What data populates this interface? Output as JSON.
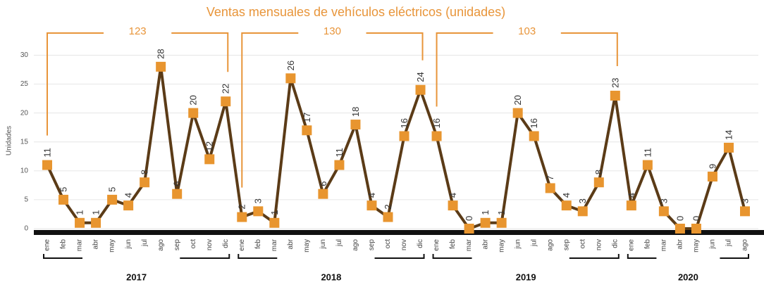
{
  "chart_data": {
    "type": "line",
    "title": "Ventas mensuales de vehículos eléctricos (unidades)",
    "y_label": "Unidades",
    "categories": [
      "ene",
      "feb",
      "mar",
      "abr",
      "may",
      "jun",
      "jul",
      "ago",
      "sep",
      "oct",
      "nov",
      "dic",
      "ene",
      "feb",
      "mar",
      "abr",
      "may",
      "jun",
      "jul",
      "ago",
      "sep",
      "oct",
      "nov",
      "dic",
      "ene",
      "feb",
      "mar",
      "abr",
      "may",
      "jun",
      "jul",
      "ago",
      "sep",
      "oct",
      "nov",
      "dic",
      "ene",
      "feb",
      "mar",
      "abr",
      "may",
      "jun",
      "jul",
      "ago"
    ],
    "series": [
      {
        "name": "Ventas",
        "color": "#5b3b17",
        "marker_color": "#e8952f",
        "values": [
          11,
          5,
          1,
          1,
          5,
          4,
          8,
          28,
          6,
          20,
          12,
          22,
          2,
          3,
          1,
          26,
          17,
          6,
          11,
          18,
          4,
          2,
          16,
          24,
          16,
          4,
          0,
          1,
          1,
          20,
          16,
          7,
          4,
          3,
          8,
          23,
          4,
          11,
          3,
          0,
          0,
          9,
          14,
          3
        ]
      }
    ],
    "years": [
      "2017",
      "2018",
      "2019",
      "2020"
    ],
    "year_totals": [
      123,
      130,
      103
    ],
    "ylim": [
      0,
      32
    ],
    "yticks": [
      0,
      5,
      10,
      15,
      20,
      25,
      30
    ],
    "grid": true
  }
}
